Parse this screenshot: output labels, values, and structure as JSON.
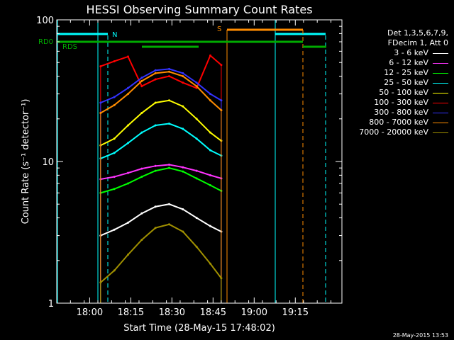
{
  "chart_data": {
    "type": "line",
    "title": "HESSI Observing Summary Count Rates",
    "xlabel": "Start Time (28-May-15 17:48:02)",
    "ylabel": "Count Rate (s⁻¹ detector⁻¹)",
    "yscale": "log",
    "ylim": [
      1,
      100
    ],
    "xlim_minutes_axis": [
      "17:48",
      "19:32"
    ],
    "x_ticks": [
      "18:00",
      "18:15",
      "18:30",
      "18:45",
      "19:00",
      "19:15"
    ],
    "y_ticks": [
      "1",
      "10",
      "100"
    ],
    "legend_header": [
      "Det 1,3,5,6,7,9,",
      "FDecim 1, Att 0"
    ],
    "legend_position": "right",
    "series": [
      {
        "name": "3 - 6 keV",
        "color": "#ffffff",
        "x": [
          "18:04",
          "18:09",
          "18:14",
          "18:19",
          "18:24",
          "18:29",
          "18:34",
          "18:39",
          "18:44",
          "18:48"
        ],
        "values": [
          3.0,
          3.3,
          3.7,
          4.3,
          4.8,
          5.0,
          4.6,
          4.0,
          3.5,
          3.2
        ]
      },
      {
        "name": "6 - 12 keV",
        "color": "#ff33ff",
        "x": [
          "18:04",
          "18:09",
          "18:14",
          "18:19",
          "18:24",
          "18:29",
          "18:34",
          "18:39",
          "18:44",
          "18:48"
        ],
        "values": [
          7.5,
          7.8,
          8.3,
          8.9,
          9.3,
          9.5,
          9.1,
          8.6,
          8.0,
          7.6
        ]
      },
      {
        "name": "12 - 25 keV",
        "color": "#00ff00",
        "x": [
          "18:04",
          "18:09",
          "18:14",
          "18:19",
          "18:24",
          "18:29",
          "18:34",
          "18:39",
          "18:44",
          "18:48"
        ],
        "values": [
          6.0,
          6.4,
          7.0,
          7.8,
          8.6,
          9.0,
          8.5,
          7.6,
          6.8,
          6.2
        ]
      },
      {
        "name": "25 - 50 keV",
        "color": "#00ffff",
        "x": [
          "18:04",
          "18:09",
          "18:14",
          "18:19",
          "18:24",
          "18:29",
          "18:34",
          "18:39",
          "18:44",
          "18:48"
        ],
        "values": [
          10.5,
          11.5,
          13.5,
          16.0,
          18.0,
          18.5,
          17.0,
          14.5,
          12.0,
          11.0
        ]
      },
      {
        "name": "50 - 100 keV",
        "color": "#ffff00",
        "x": [
          "18:04",
          "18:09",
          "18:14",
          "18:19",
          "18:24",
          "18:29",
          "18:34",
          "18:39",
          "18:44",
          "18:48"
        ],
        "values": [
          13.0,
          14.5,
          18.0,
          22.0,
          26.0,
          27.0,
          24.5,
          20.0,
          16.0,
          14.0
        ]
      },
      {
        "name": "100 - 300 keV",
        "color": "#ff0000",
        "x": [
          "18:04",
          "18:09",
          "18:14",
          "18:19",
          "18:24",
          "18:29",
          "18:34",
          "18:39",
          "18:44",
          "18:48"
        ],
        "values": [
          47.0,
          51.0,
          55.0,
          34.0,
          38.0,
          40.0,
          36.0,
          33.0,
          56.0,
          48.0
        ]
      },
      {
        "name": "300 - 800 keV",
        "color": "#3333ff",
        "x": [
          "18:04",
          "18:09",
          "18:14",
          "18:19",
          "18:24",
          "18:29",
          "18:34",
          "18:39",
          "18:44",
          "18:48"
        ],
        "values": [
          26.0,
          28.5,
          33.0,
          39.0,
          44.0,
          45.0,
          42.0,
          36.0,
          30.0,
          27.0
        ]
      },
      {
        "name": "800 - 7000 keV",
        "color": "#ff8c00",
        "x": [
          "18:04",
          "18:09",
          "18:14",
          "18:19",
          "18:24",
          "18:29",
          "18:34",
          "18:39",
          "18:44",
          "18:48"
        ],
        "values": [
          22.0,
          25.0,
          30.0,
          37.0,
          42.0,
          43.0,
          40.0,
          34.0,
          27.0,
          23.0
        ]
      },
      {
        "name": "7000 - 20000 keV",
        "color": "#a09000",
        "x": [
          "18:04",
          "18:09",
          "18:14",
          "18:19",
          "18:24",
          "18:29",
          "18:34",
          "18:39",
          "18:44",
          "18:48"
        ],
        "values": [
          1.4,
          1.7,
          2.2,
          2.8,
          3.4,
          3.6,
          3.2,
          2.5,
          1.9,
          1.5
        ]
      }
    ],
    "annotations": [
      {
        "text": "N",
        "color": "#00ffff"
      },
      {
        "text": "S",
        "color": "#ff8c00"
      },
      {
        "text": "RD0",
        "color": "#00aa00"
      },
      {
        "text": "RDS",
        "color": "#00aa00"
      }
    ],
    "footer": "28-May-2015 13:53"
  }
}
